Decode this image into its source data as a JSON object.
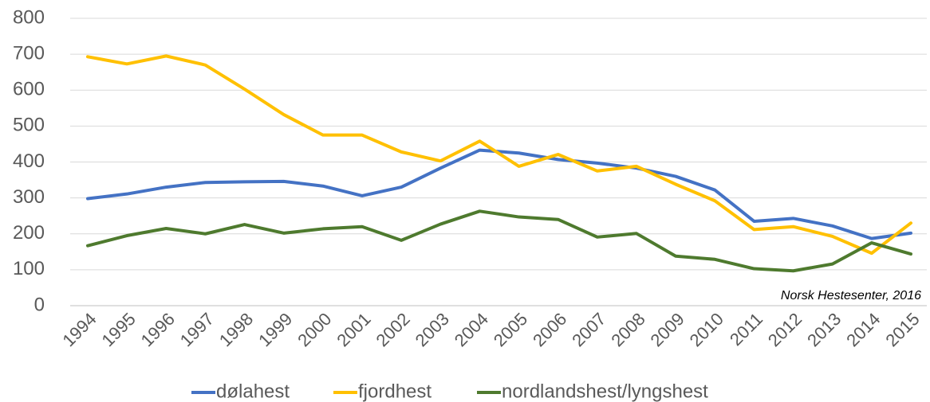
{
  "chart_data": {
    "type": "line",
    "categories": [
      "1994",
      "1995",
      "1996",
      "1997",
      "1998",
      "1999",
      "2000",
      "2001",
      "2002",
      "2003",
      "2004",
      "2005",
      "2006",
      "2007",
      "2008",
      "2009",
      "2010",
      "2011",
      "2012",
      "2013",
      "2014",
      "2015"
    ],
    "series": [
      {
        "name": "dølahest",
        "color": "#4472c4",
        "values": [
          298,
          311,
          330,
          343,
          345,
          346,
          333,
          306,
          330,
          383,
          433,
          425,
          407,
          397,
          383,
          360,
          322,
          235,
          243,
          222,
          187,
          202
        ]
      },
      {
        "name": "fjordhest",
        "color": "#ffc000",
        "values": [
          693,
          673,
          695,
          670,
          603,
          532,
          475,
          475,
          428,
          403,
          458,
          388,
          421,
          375,
          388,
          338,
          292,
          212,
          220,
          193,
          146,
          230
        ]
      },
      {
        "name": "nordlandshest/lyngshest",
        "color": "#4e7a2e",
        "values": [
          167,
          195,
          215,
          200,
          226,
          202,
          214,
          220,
          182,
          227,
          263,
          247,
          240,
          191,
          201,
          138,
          129,
          103,
          97,
          116,
          175,
          144
        ]
      }
    ],
    "ylim": [
      0,
      800
    ],
    "yticks": [
      0,
      100,
      200,
      300,
      400,
      500,
      600,
      700,
      800
    ],
    "grid": true,
    "annotation": "Norsk Hestesenter, 2016",
    "legend": "bottom"
  }
}
